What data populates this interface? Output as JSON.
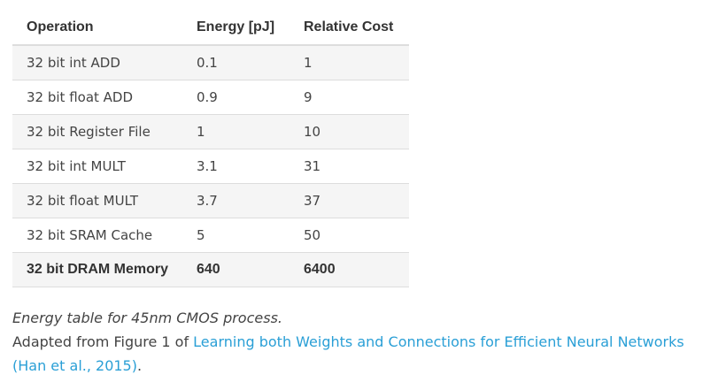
{
  "table": {
    "headers": [
      "Operation",
      "Energy [pJ]",
      "Relative Cost"
    ],
    "rows": [
      {
        "operation": "32 bit int ADD",
        "energy": "0.1",
        "relative": "1"
      },
      {
        "operation": "32 bit float ADD",
        "energy": "0.9",
        "relative": "9"
      },
      {
        "operation": "32 bit Register File",
        "energy": "1",
        "relative": "10"
      },
      {
        "operation": "32 bit int MULT",
        "energy": "3.1",
        "relative": "31"
      },
      {
        "operation": "32 bit float MULT",
        "energy": "3.7",
        "relative": "37"
      },
      {
        "operation": "32 bit SRAM Cache",
        "energy": "5",
        "relative": "50"
      },
      {
        "operation": "32 bit DRAM Memory",
        "energy": "640",
        "relative": "6400"
      }
    ]
  },
  "caption": {
    "italic_text": "Energy table for 45nm CMOS process.",
    "adapted_prefix": "Adapted from Figure 1 of ",
    "link_text": "Learning both Weights and Connections for Efficient Neural Networks (Han et al., 2015)",
    "suffix": "."
  },
  "colors": {
    "link": "#2a9fd6",
    "stripe": "#f5f5f5",
    "border": "#dddddd"
  }
}
